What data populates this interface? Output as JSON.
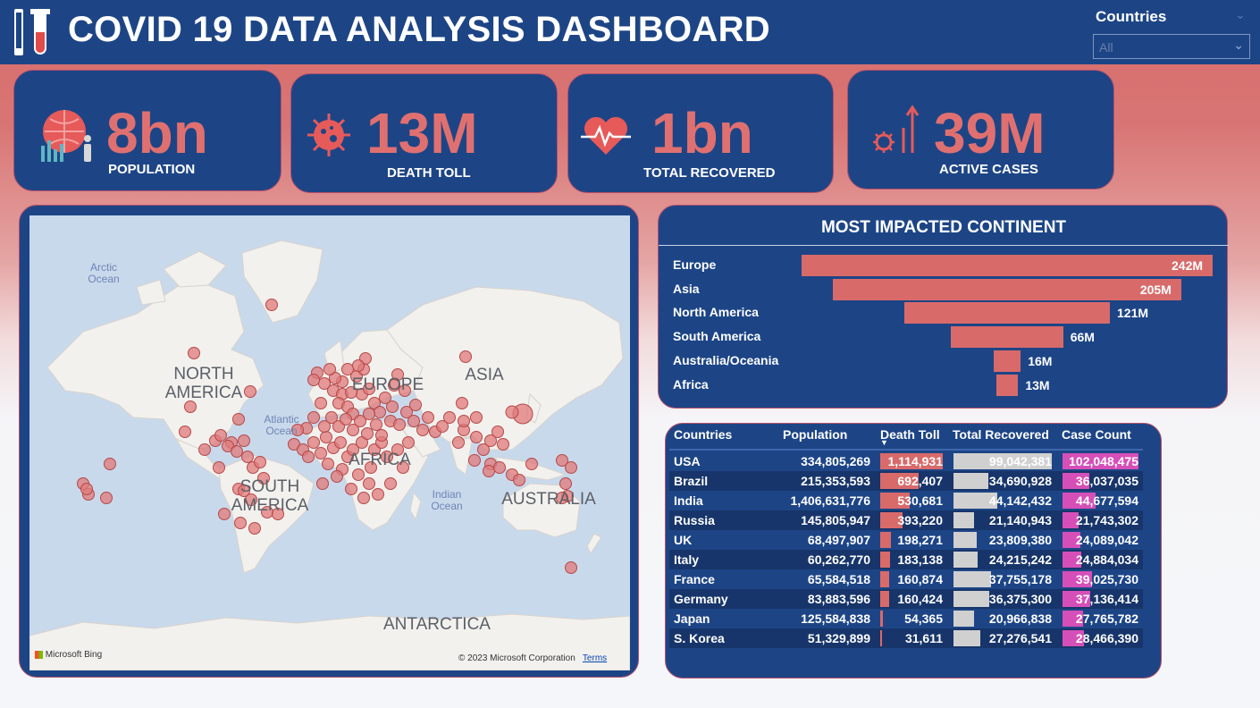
{
  "header": {
    "title": "COVID 19 DATA ANALYSIS DASHBOARD"
  },
  "slicer": {
    "label": "Countries",
    "value": "All"
  },
  "kpis": [
    {
      "value": "8bn",
      "label": "POPULATION",
      "icon": "population-globe-icon"
    },
    {
      "value": "13M",
      "label": "DEATH TOLL",
      "icon": "virus-icon"
    },
    {
      "value": "1bn",
      "label": "TOTAL RECOVERED",
      "icon": "heartbeat-icon"
    },
    {
      "value": "39M",
      "label": "ACTIVE CASES",
      "icon": "rising-virus-icon"
    }
  ],
  "map": {
    "labels": [
      "NORTH AMERICA",
      "SOUTH AMERICA",
      "ASIA",
      "EUROPE",
      "AFRICA",
      "AUSTRALIA",
      "ANTARCTICA"
    ],
    "oceans": [
      "Arctic Ocean",
      "Atlantic Ocean",
      "Indian Ocean"
    ],
    "attribution": "Microsoft Bing",
    "copyright": "© 2023 Microsoft Corporation",
    "terms": "Terms",
    "bubble_color": "#e07a7a"
  },
  "chart_data": {
    "type": "bar",
    "title": "MOST IMPACTED CONTINENT",
    "categories": [
      "Europe",
      "Asia",
      "North America",
      "South America",
      "Australia/Oceania",
      "Africa"
    ],
    "values": [
      242,
      205,
      121,
      66,
      16,
      13
    ],
    "value_labels": [
      "242M",
      "205M",
      "121M",
      "66M",
      "16M",
      "13M"
    ],
    "orientation": "funnel",
    "color": "#d96a6a"
  },
  "table": {
    "headers": [
      "Countries",
      "Population",
      "Death Toll",
      "Total Recovered",
      "Case Count"
    ],
    "sort_column": "Death Toll",
    "rows": [
      {
        "country": "USA",
        "population": "334,805,269",
        "death": "1,114,931",
        "death_v": 1114931,
        "recovered": "99,042,381",
        "recovered_v": 99042381,
        "cases": "102,048,475",
        "cases_v": 102048475
      },
      {
        "country": "Brazil",
        "population": "215,353,593",
        "death": "692,407",
        "death_v": 692407,
        "recovered": "34,690,928",
        "recovered_v": 34690928,
        "cases": "36,037,035",
        "cases_v": 36037035
      },
      {
        "country": "India",
        "population": "1,406,631,776",
        "death": "530,681",
        "death_v": 530681,
        "recovered": "44,142,432",
        "recovered_v": 44142432,
        "cases": "44,677,594",
        "cases_v": 44677594
      },
      {
        "country": "Russia",
        "population": "145,805,947",
        "death": "393,220",
        "death_v": 393220,
        "recovered": "21,140,943",
        "recovered_v": 21140943,
        "cases": "21,743,302",
        "cases_v": 21743302
      },
      {
        "country": "UK",
        "population": "68,497,907",
        "death": "198,271",
        "death_v": 198271,
        "recovered": "23,809,380",
        "recovered_v": 23809380,
        "cases": "24,089,042",
        "cases_v": 24089042
      },
      {
        "country": "Italy",
        "population": "60,262,770",
        "death": "183,138",
        "death_v": 183138,
        "recovered": "24,215,242",
        "recovered_v": 24215242,
        "cases": "24,884,034",
        "cases_v": 24884034
      },
      {
        "country": "France",
        "population": "65,584,518",
        "death": "160,874",
        "death_v": 160874,
        "recovered": "37,755,178",
        "recovered_v": 37755178,
        "cases": "39,025,730",
        "cases_v": 39025730
      },
      {
        "country": "Germany",
        "population": "83,883,596",
        "death": "160,424",
        "death_v": 160424,
        "recovered": "36,375,300",
        "recovered_v": 36375300,
        "cases": "37,136,414",
        "cases_v": 37136414
      },
      {
        "country": "Japan",
        "population": "125,584,838",
        "death": "54,365",
        "death_v": 54365,
        "recovered": "20,966,838",
        "recovered_v": 20966838,
        "cases": "27,765,782",
        "cases_v": 27765782
      },
      {
        "country": "S. Korea",
        "population": "51,329,899",
        "death": "31,611",
        "death_v": 31611,
        "recovered": "27,276,541",
        "recovered_v": 27276541,
        "cases": "28,466,390",
        "cases_v": 28466390
      }
    ]
  }
}
